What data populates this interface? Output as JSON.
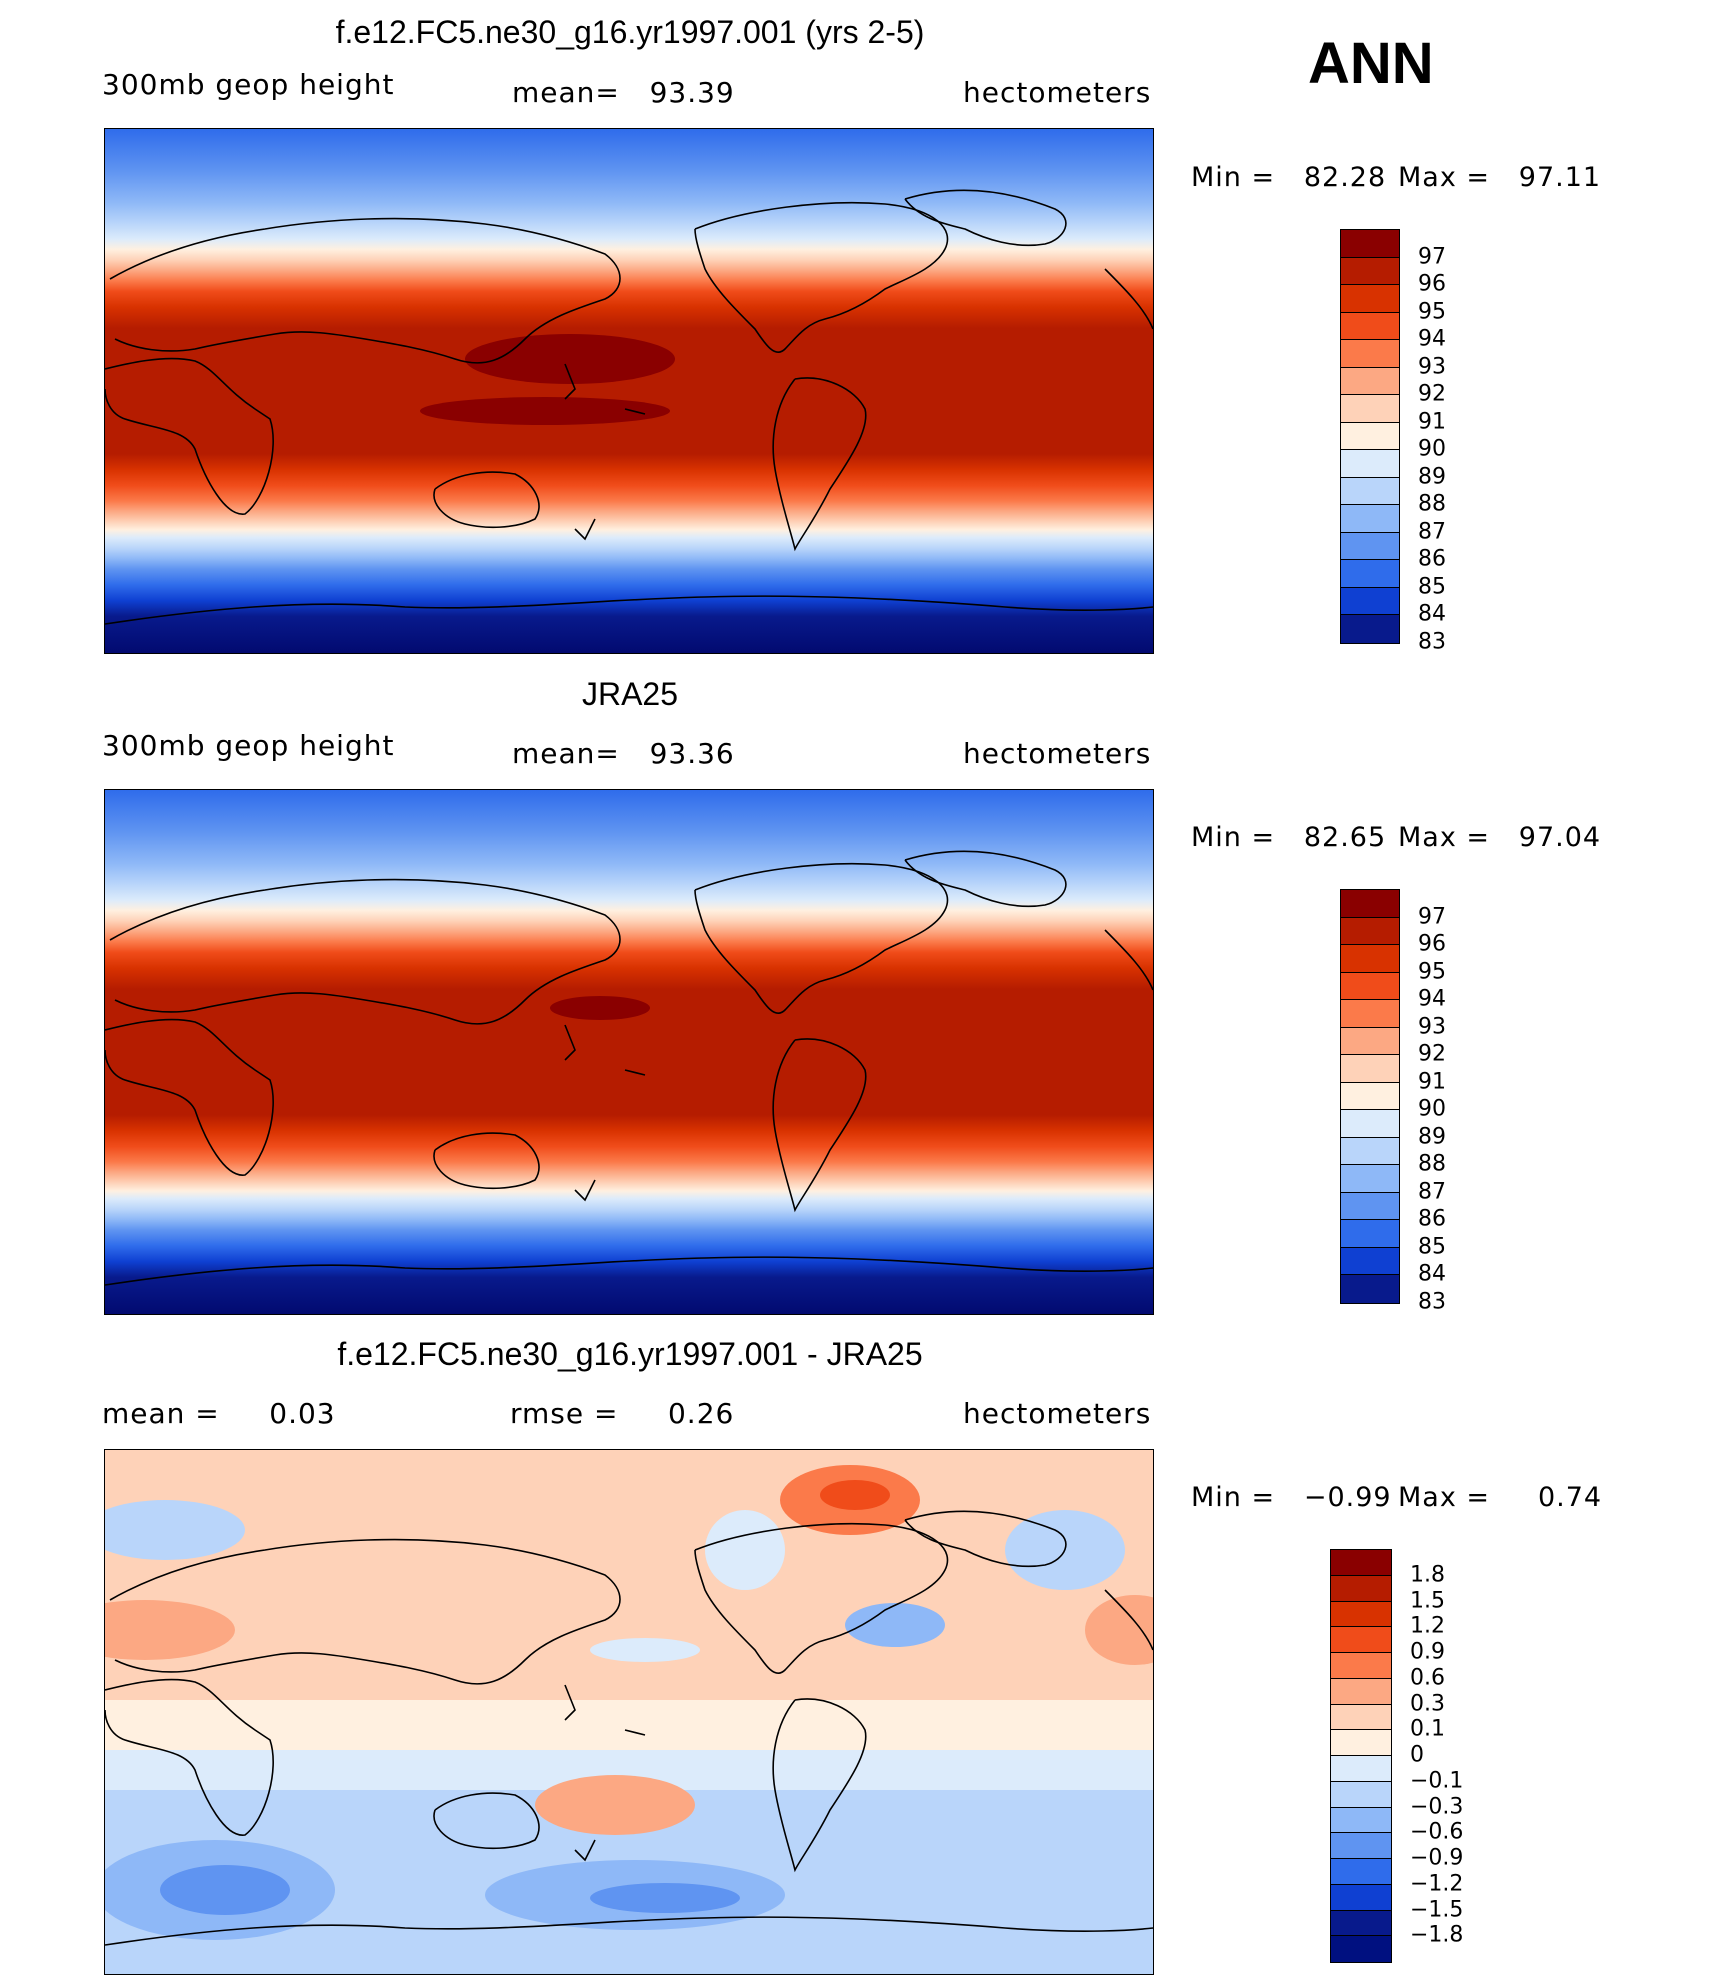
{
  "season": "ANN",
  "chart_data": [
    {
      "type": "heatmap",
      "title": "f.e12.FC5.ne30_g16.yr1997.001 (yrs 2-5)",
      "left_label": "300mb geop height",
      "center_label": "mean=   93.39",
      "right_label": "hectometers",
      "min_label": "Min =   82.28",
      "max_label": "Max =   97.11",
      "min": 82.28,
      "max": 97.11,
      "mean": 93.39,
      "units": "hectometers",
      "colorbar_ticks": [
        "97",
        "96",
        "95",
        "94",
        "93",
        "92",
        "91",
        "90",
        "89",
        "88",
        "87",
        "86",
        "85",
        "84",
        "83"
      ],
      "colorbar_colors": [
        "#8a0000",
        "#b51c00",
        "#d83200",
        "#f04c1a",
        "#fb7a4a",
        "#fca883",
        "#fed2b8",
        "#fff0e0",
        "#dcebfb",
        "#b9d5fa",
        "#8eb8f7",
        "#5f94f1",
        "#2f6ceb",
        "#0f40d2",
        "#081a8c"
      ]
    },
    {
      "type": "heatmap",
      "title": "JRA25",
      "left_label": "300mb geop height",
      "center_label": "mean=   93.36",
      "right_label": "hectometers",
      "min_label": "Min =   82.65",
      "max_label": "Max =   97.04",
      "min": 82.65,
      "max": 97.04,
      "mean": 93.36,
      "units": "hectometers",
      "colorbar_ticks": [
        "97",
        "96",
        "95",
        "94",
        "93",
        "92",
        "91",
        "90",
        "89",
        "88",
        "87",
        "86",
        "85",
        "84",
        "83"
      ],
      "colorbar_colors": [
        "#8a0000",
        "#b51c00",
        "#d83200",
        "#f04c1a",
        "#fb7a4a",
        "#fca883",
        "#fed2b8",
        "#fff0e0",
        "#dcebfb",
        "#b9d5fa",
        "#8eb8f7",
        "#5f94f1",
        "#2f6ceb",
        "#0f40d2",
        "#081a8c"
      ]
    },
    {
      "type": "heatmap",
      "title": "f.e12.FC5.ne30_g16.yr1997.001 - JRA25",
      "left_label": "mean =     0.03",
      "center_label": "rmse =     0.26",
      "right_label": "hectometers",
      "min_label": "Min =   −0.99",
      "max_label": "Max =     0.74",
      "min": -0.99,
      "max": 0.74,
      "mean": 0.03,
      "rmse": 0.26,
      "units": "hectometers",
      "colorbar_ticks": [
        "1.8",
        "1.5",
        "1.2",
        "0.9",
        "0.6",
        "0.3",
        "0.1",
        "0",
        "−0.1",
        "−0.3",
        "−0.6",
        "−0.9",
        "−1.2",
        "−1.5",
        "−1.8"
      ],
      "colorbar_colors": [
        "#8a0000",
        "#b51c00",
        "#d83200",
        "#f04c1a",
        "#fb7a4a",
        "#fca883",
        "#fed2b8",
        "#fff0e0",
        "#dcebfb",
        "#b9d5fa",
        "#8eb8f7",
        "#5f94f1",
        "#2f6ceb",
        "#0f40d2",
        "#081a8c",
        "#001080"
      ]
    }
  ]
}
